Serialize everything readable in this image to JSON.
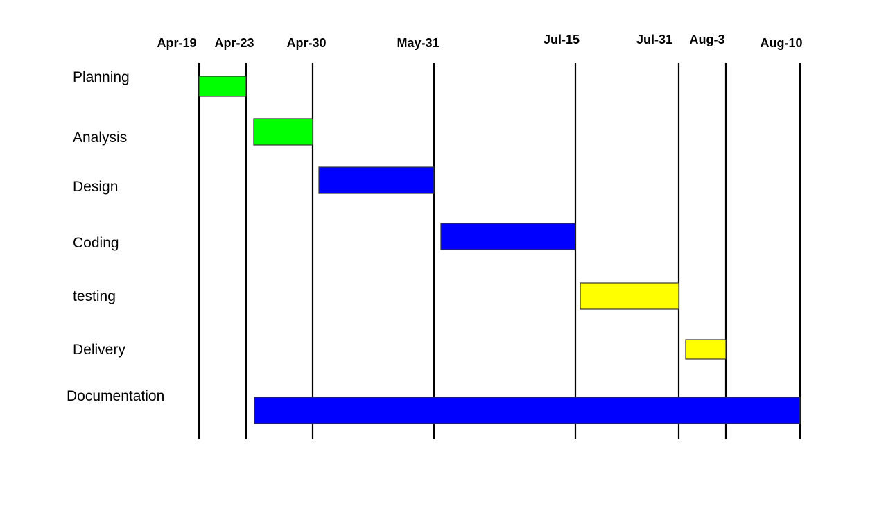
{
  "chart_data": {
    "type": "gantt",
    "title": "",
    "xlabel": "",
    "ylabel": "",
    "grid": true,
    "legend": "none",
    "milestones": [
      "Apr-19",
      "Apr-23",
      "Apr-30",
      "May-31",
      "Jul-15",
      "Jul-31",
      "Aug-3",
      "Aug-10"
    ],
    "tasks": [
      {
        "name": "Planning",
        "start": "Apr-19",
        "end": "Apr-23",
        "color": "#00ff00"
      },
      {
        "name": "Analysis",
        "start": "Apr-23",
        "end": "Apr-30",
        "color": "#00ff00"
      },
      {
        "name": "Design",
        "start": "Apr-30",
        "end": "May-31",
        "color": "#0000ff"
      },
      {
        "name": "Coding",
        "start": "May-31",
        "end": "Jul-15",
        "color": "#0000ff"
      },
      {
        "name": "testing",
        "start": "Jul-15",
        "end": "Jul-31",
        "color": "#ffff00"
      },
      {
        "name": "Delivery",
        "start": "Jul-31",
        "end": "Aug-3",
        "color": "#ffff00"
      },
      {
        "name": "Documentation",
        "start": "Apr-23",
        "end": "Aug-10",
        "color": "#0000ff"
      }
    ]
  }
}
